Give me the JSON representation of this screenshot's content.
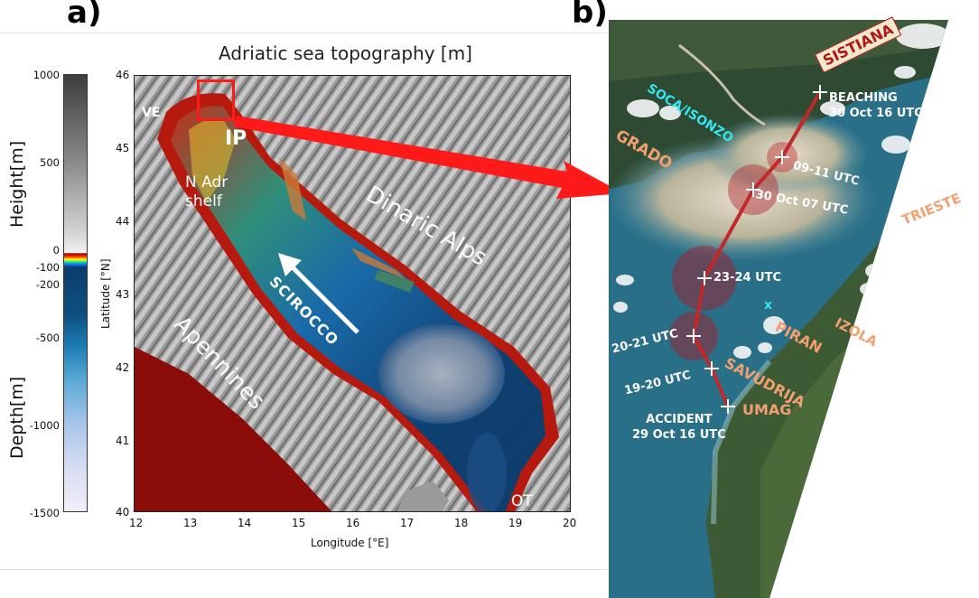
{
  "panel_a": {
    "label": "a)",
    "title": "Adriatic sea topography [m]",
    "colorbar": {
      "ticks": [
        "1000",
        "500",
        "0",
        "-100",
        "-200",
        "-500",
        "-1000",
        "-1500"
      ],
      "height_label": "Height[m]",
      "depth_label": "Depth[m]"
    },
    "x_ticks": [
      "12",
      "13",
      "14",
      "15",
      "16",
      "17",
      "18",
      "19",
      "20"
    ],
    "y_ticks": [
      "46",
      "45",
      "44",
      "43",
      "42",
      "41",
      "40"
    ],
    "xlabel": "Longitude [°E]",
    "ylabel": "Latitude [°N]",
    "labels": {
      "ve": "VE",
      "ip": "IP",
      "nadr_line1": "N Adr",
      "nadr_line2": "shelf",
      "dinaric": "Dinaric Alps",
      "apennines": "Apennines",
      "scirocco": "SCIROCCO",
      "ot": "OT"
    }
  },
  "panel_b": {
    "label": "b)",
    "places": {
      "sistiana": "SISTIANA",
      "soca": "SOCA/ISONZO",
      "grado": "GRADO",
      "trieste": "TRIESTE",
      "izola": "IZOLA",
      "piran": "PIRAN",
      "savudrija": "SAVUDRIJA",
      "umag": "UMAG",
      "x_marker": "x"
    },
    "track": [
      {
        "label_line1": "BEACHING",
        "label_line2": "30 Oct 16 UTC"
      },
      {
        "label_line1": "09-11 UTC"
      },
      {
        "label_line1": "30 Oct 07 UTC"
      },
      {
        "label_line1": "23-24 UTC"
      },
      {
        "label_line1": "20-21 UTC"
      },
      {
        "label_line1": "19-20 UTC"
      },
      {
        "label_line1": "ACCIDENT",
        "label_line2": "29 Oct 16 UTC"
      }
    ]
  },
  "colors": {
    "arrow_red": "#ff1a1a",
    "place_orange": "#f2a070",
    "place_cyan": "#33e6f0",
    "track_red": "#c0282a"
  }
}
